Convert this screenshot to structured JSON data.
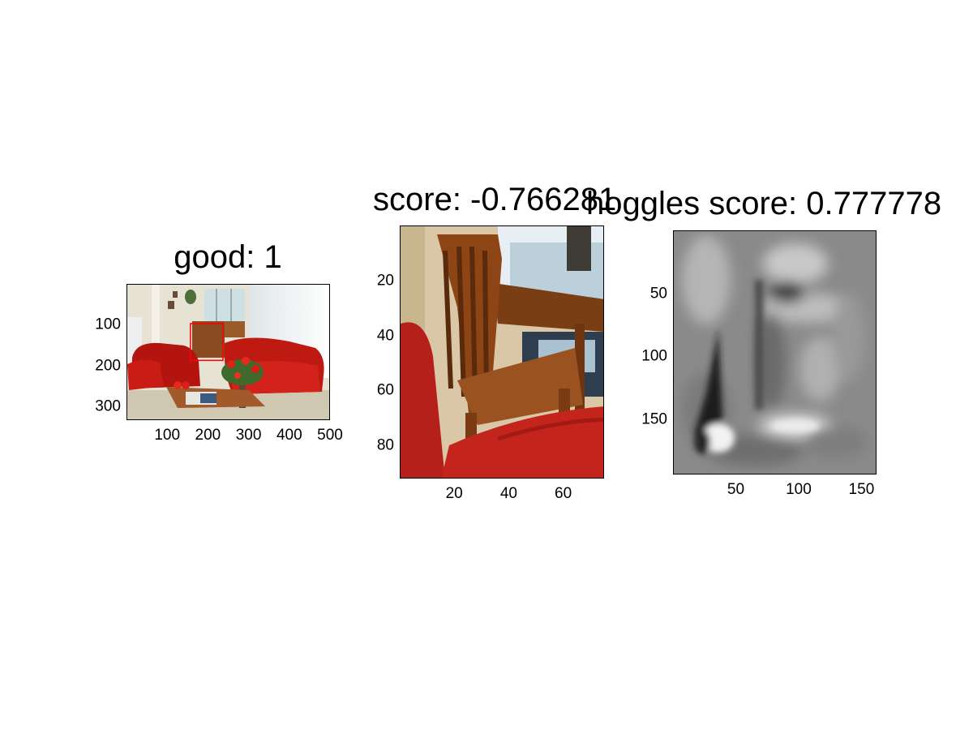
{
  "chart_data": [
    {
      "type": "image",
      "title": "good: 1",
      "xticks": [
        "100",
        "200",
        "300",
        "400",
        "500"
      ],
      "yticks": [
        "100",
        "200",
        "300"
      ],
      "xlim": [
        0,
        500
      ],
      "ylim": [
        0,
        333
      ],
      "detection_box": {
        "x": [
          155,
          235
        ],
        "y": [
          95,
          185
        ],
        "color": "#ff0000"
      }
    },
    {
      "type": "image",
      "title": "score: -0.766281",
      "xticks": [
        "20",
        "40",
        "60"
      ],
      "yticks": [
        "20",
        "40",
        "60",
        "80"
      ],
      "xlim": [
        0,
        75
      ],
      "ylim": [
        0,
        92
      ]
    },
    {
      "type": "heatmap",
      "title": "hoggles score: 0.777778",
      "colormap": "gray",
      "xticks": [
        "50",
        "100",
        "150"
      ],
      "yticks": [
        "50",
        "100",
        "150"
      ],
      "xlim": [
        0,
        162
      ],
      "ylim": [
        0,
        194
      ]
    }
  ]
}
